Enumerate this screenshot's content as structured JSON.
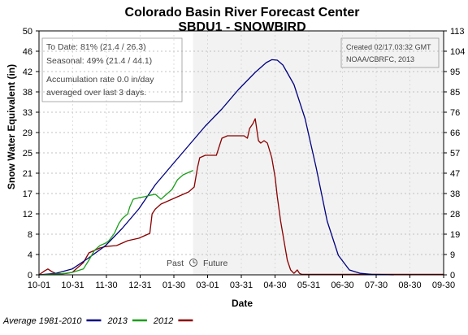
{
  "chart_data": {
    "type": "line",
    "title": "Colorado Basin River Forecast Center",
    "subtitle": "SBDU1 - SNOWBIRD",
    "xlabel": "Date",
    "ylabel": "Snow Water Equivalent (in)",
    "y_left_ticks": [
      "0",
      "4",
      "8",
      "12",
      "17",
      "21",
      "25",
      "29",
      "33",
      "38",
      "42",
      "46",
      "50"
    ],
    "y_right_ticks": [
      "0",
      "9",
      "19",
      "28",
      "38",
      "47",
      "57",
      "66",
      "76",
      "85",
      "95",
      "104",
      "113"
    ],
    "ylim": [
      0,
      50
    ],
    "x_ticks": [
      "10-01",
      "10-31",
      "11-30",
      "12-31",
      "01-30",
      "03-01",
      "03-31",
      "04-30",
      "05-31",
      "06-30",
      "07-30",
      "08-30",
      "09-30"
    ],
    "xlim_days": [
      0,
      365
    ],
    "past_label": "Past",
    "future_label": "Future",
    "annotations": {
      "to_date": "To Date: 81% (21.4 / 26.3)",
      "seasonal": "Seasonal: 49% (21.4 / 44.1)",
      "accum_line1": "Accumulation rate 0.0 in/day",
      "accum_line2": "averaged over last 3 days.",
      "created": "Created 02/17.03:32 GMT",
      "source": "NOAA/CBRFC, 2013"
    },
    "legend": [
      {
        "label": "Average 1981-2010",
        "color": "#000080"
      },
      {
        "label": "2013",
        "color": "#1a9e1a"
      },
      {
        "label": "2012",
        "color": "#8b0000"
      }
    ],
    "series": [
      {
        "name": "Average 1981-2010",
        "color": "#000080",
        "x": [
          0,
          15,
          30,
          45,
          60,
          75,
          90,
          105,
          120,
          135,
          150,
          165,
          180,
          195,
          205,
          210,
          215,
          220,
          230,
          240,
          250,
          260,
          270,
          280,
          290,
          300,
          310,
          320
        ],
        "y": [
          0,
          0.3,
          1.2,
          3.5,
          6.0,
          9.5,
          13.5,
          18.5,
          22.5,
          26.5,
          30.5,
          34,
          38,
          41.5,
          43.5,
          44.1,
          44.0,
          43.0,
          39.0,
          32.0,
          22.0,
          11.0,
          4.0,
          1.0,
          0.3,
          0.1,
          0.05,
          0
        ]
      },
      {
        "name": "2013",
        "color": "#1a9e1a",
        "x": [
          0,
          10,
          20,
          30,
          40,
          45,
          50,
          55,
          60,
          63,
          68,
          72,
          75,
          80,
          82,
          85,
          90,
          95,
          100,
          105,
          110,
          115,
          120,
          125,
          130,
          135,
          139
        ],
        "y": [
          0,
          0.1,
          0.2,
          0.5,
          1.2,
          3.0,
          5.0,
          6.0,
          6.5,
          7.0,
          8.5,
          10.5,
          11.5,
          12.5,
          14.0,
          15.5,
          15.8,
          16.0,
          16.3,
          16.5,
          15.5,
          16.5,
          17.5,
          19.5,
          20.5,
          21.0,
          21.4
        ]
      },
      {
        "name": "2012",
        "color": "#8b0000",
        "x": [
          0,
          5,
          8,
          12,
          15,
          20,
          25,
          30,
          40,
          45,
          50,
          55,
          60,
          70,
          80,
          90,
          95,
          100,
          102,
          105,
          110,
          115,
          120,
          125,
          130,
          135,
          140,
          143,
          145,
          150,
          153,
          160,
          165,
          170,
          175,
          180,
          185,
          188,
          190,
          193,
          195,
          198,
          200,
          203,
          206,
          210,
          213,
          215,
          218,
          221,
          224,
          227,
          230,
          233,
          235,
          237,
          240,
          245,
          250,
          260,
          300,
          365
        ],
        "y": [
          0,
          0.8,
          1.2,
          0.6,
          0.3,
          0.2,
          0.3,
          0.5,
          2.5,
          4.5,
          5.0,
          5.5,
          5.8,
          6.0,
          7.0,
          7.5,
          8.0,
          8.5,
          12.5,
          13.5,
          14.5,
          15.0,
          15.5,
          16.0,
          16.5,
          17.0,
          18.0,
          22.0,
          24.0,
          24.5,
          24.5,
          24.5,
          28.0,
          28.5,
          28.5,
          28.5,
          28.5,
          28.0,
          30.0,
          31.0,
          32.0,
          27.5,
          27.0,
          27.5,
          27.0,
          24.0,
          20.0,
          16.0,
          11.0,
          7.0,
          3.0,
          1.0,
          0.3,
          1.0,
          0.3,
          0.1,
          0.1,
          0.1,
          0.1,
          0.1,
          0.1,
          0.1
        ]
      }
    ]
  }
}
